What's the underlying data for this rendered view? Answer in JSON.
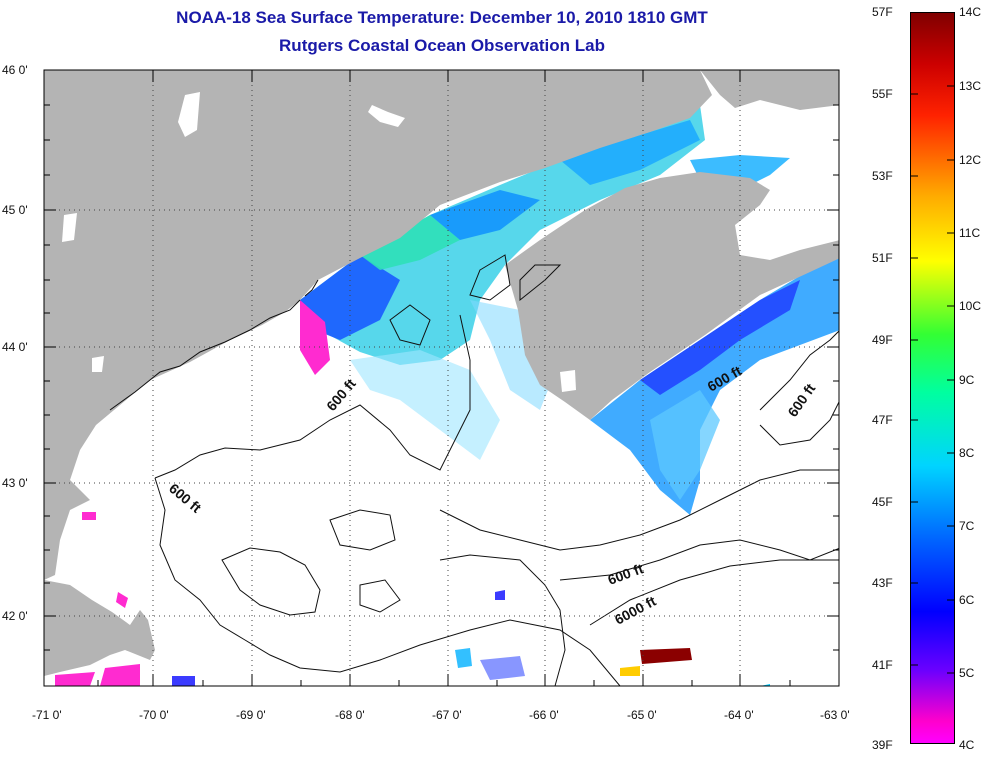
{
  "title": {
    "line1": "NOAA-18 Sea Surface Temperature:  December 10, 2010 1810 GMT",
    "line2": "Rutgers Coastal Ocean Observation Lab"
  },
  "axes": {
    "lat_labels": [
      "46 0'",
      "45 0'",
      "44 0'",
      "43 0'",
      "42 0'"
    ],
    "lon_labels": [
      "-71 0'",
      "-70 0'",
      "-69 0'",
      "-68 0'",
      "-67 0'",
      "-66 0'",
      "-65 0'",
      "-64 0'",
      "-63 0'"
    ],
    "lat_range": [
      41.5,
      46.0
    ],
    "lon_range": [
      -71.0,
      -63.0
    ]
  },
  "colorbar": {
    "fahrenheit": [
      "57F",
      "55F",
      "53F",
      "51F",
      "49F",
      "47F",
      "45F",
      "43F",
      "41F",
      "39F"
    ],
    "celsius": [
      "14C",
      "13C",
      "12C",
      "11C",
      "10C",
      "9C",
      "8C",
      "7C",
      "6C",
      "5C",
      "4C"
    ],
    "range_c": [
      4,
      14
    ]
  },
  "contour_labels": [
    "600 ft",
    "600 ft",
    "600 ft",
    "600 ft",
    "600 ft",
    "6000 ft"
  ],
  "colors": {
    "land": "#b4b4b4",
    "title": "#1a1aa8",
    "sst_cold": "#ff00ff",
    "sst_mid": "#00c8ff",
    "sst_warm": "#800000"
  }
}
